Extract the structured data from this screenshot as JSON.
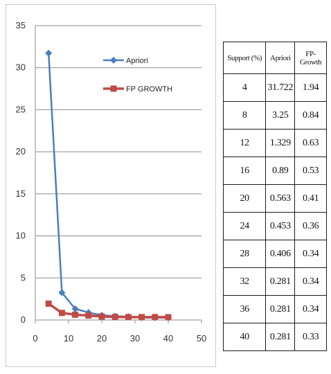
{
  "chart_data": {
    "type": "line",
    "x": [
      4,
      8,
      12,
      16,
      20,
      24,
      28,
      32,
      36,
      40
    ],
    "series": [
      {
        "name": "Apriori",
        "values": [
          31.722,
          3.25,
          1.329,
          0.89,
          0.563,
          0.453,
          0.406,
          0.281,
          0.281,
          0.281
        ],
        "color": "#4a7ebb",
        "marker": "diamond"
      },
      {
        "name": "FP GROWTH",
        "values": [
          1.94,
          0.84,
          0.63,
          0.53,
          0.41,
          0.36,
          0.34,
          0.34,
          0.34,
          0.33
        ],
        "color": "#be4b48",
        "marker": "square"
      }
    ],
    "xlim": [
      0,
      50
    ],
    "ylim": [
      0,
      35
    ],
    "xticks": [
      0,
      10,
      20,
      30,
      40,
      50
    ],
    "yticks": [
      0,
      5,
      10,
      15,
      20,
      25,
      30,
      35
    ],
    "grid": "horizontal",
    "legend_position": "top-right",
    "title": "",
    "xlabel": "",
    "ylabel": ""
  },
  "table": {
    "headers": [
      "Support (%)",
      "Apriori",
      "FP-Growth"
    ],
    "rows": [
      [
        "4",
        "31.722",
        "1.94"
      ],
      [
        "8",
        "3.25",
        "0.84"
      ],
      [
        "12",
        "1.329",
        "0.63"
      ],
      [
        "16",
        "0.89",
        "0.53"
      ],
      [
        "20",
        "0.563",
        "0.41"
      ],
      [
        "24",
        "0.453",
        "0.36"
      ],
      [
        "28",
        "0.406",
        "0.34"
      ],
      [
        "32",
        "0.281",
        "0.34"
      ],
      [
        "36",
        "0.281",
        "0.34"
      ],
      [
        "40",
        "0.281",
        "0.33"
      ]
    ]
  }
}
